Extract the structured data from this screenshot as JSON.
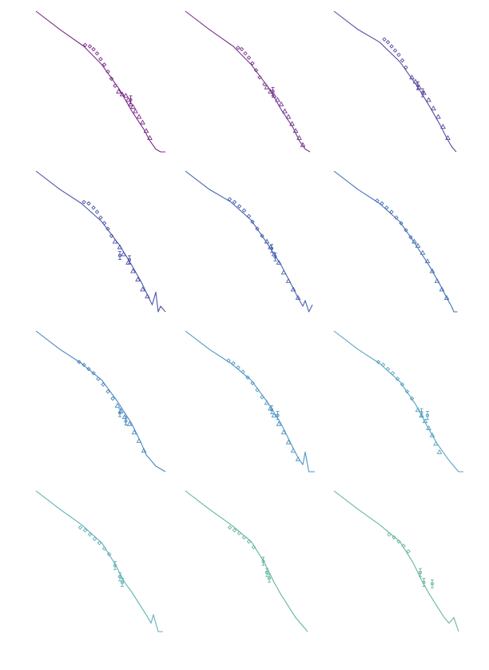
{
  "figure": {
    "rows": 4,
    "cols": 3,
    "axes_visible": false,
    "grid": false,
    "legend": "none"
  },
  "chart_data": [
    {
      "type": "line",
      "color": "#7b2a8a",
      "curve": {
        "x": [
          0,
          0.2,
          0.4,
          0.55,
          0.7,
          0.8,
          0.9,
          0.95,
          1.0,
          1.04,
          1.08
        ],
        "y": [
          0,
          0.13,
          0.25,
          0.38,
          0.56,
          0.71,
          0.84,
          0.92,
          0.98,
          1.0,
          1.0
        ]
      },
      "points": [
        {
          "marker": "diamond",
          "x": [
            0.41,
            0.45,
            0.48,
            0.51,
            0.54,
            0.57,
            0.6,
            0.63,
            0.66
          ],
          "y": [
            0.24,
            0.25,
            0.27,
            0.3,
            0.34,
            0.38,
            0.43,
            0.48,
            0.53
          ]
        },
        {
          "marker": "triangle",
          "x": [
            0.69,
            0.72,
            0.75,
            0.77,
            0.79,
            0.81,
            0.83,
            0.86,
            0.89,
            0.92,
            0.95
          ],
          "y": [
            0.57,
            0.59,
            0.6,
            0.63,
            0.66,
            0.68,
            0.71,
            0.75,
            0.79,
            0.85,
            0.9
          ]
        },
        {
          "marker": "errorbar",
          "x": [
            0.79
          ],
          "y": [
            0.63
          ]
        }
      ]
    },
    {
      "type": "line",
      "color": "#76368e",
      "curve": {
        "x": [
          0,
          0.2,
          0.4,
          0.55,
          0.7,
          0.8,
          0.9,
          0.95,
          1.0,
          1.04
        ],
        "y": [
          0,
          0.13,
          0.25,
          0.38,
          0.55,
          0.7,
          0.83,
          0.92,
          0.98,
          1.0
        ]
      },
      "points": [
        {
          "marker": "diamond",
          "x": [
            0.44,
            0.47,
            0.5,
            0.53,
            0.56,
            0.59,
            0.62,
            0.66
          ],
          "y": [
            0.26,
            0.27,
            0.3,
            0.33,
            0.37,
            0.42,
            0.47,
            0.52
          ]
        },
        {
          "marker": "triangle",
          "x": [
            0.68,
            0.71,
            0.74,
            0.77,
            0.8,
            0.83,
            0.86,
            0.89,
            0.92,
            0.95,
            0.98
          ],
          "y": [
            0.54,
            0.57,
            0.6,
            0.63,
            0.66,
            0.71,
            0.75,
            0.8,
            0.85,
            0.9,
            0.95
          ]
        },
        {
          "marker": "errorbar",
          "x": [
            0.73
          ],
          "y": [
            0.57
          ]
        }
      ]
    },
    {
      "type": "line",
      "color": "#5e4aa0",
      "curve": {
        "x": [
          0,
          0.2,
          0.38,
          0.55,
          0.7,
          0.8,
          0.88,
          0.94,
          0.98,
          1.0,
          1.02
        ],
        "y": [
          0,
          0.13,
          0.22,
          0.36,
          0.54,
          0.68,
          0.8,
          0.9,
          0.96,
          0.98,
          1.0
        ]
      },
      "points": [
        {
          "marker": "diamond",
          "x": [
            0.42,
            0.45,
            0.48,
            0.51,
            0.54,
            0.57,
            0.6
          ],
          "y": [
            0.2,
            0.22,
            0.25,
            0.28,
            0.31,
            0.35,
            0.4
          ]
        },
        {
          "marker": "triangle",
          "x": [
            0.65,
            0.68,
            0.71,
            0.75,
            0.79,
            0.83,
            0.87,
            0.91,
            0.95
          ],
          "y": [
            0.47,
            0.5,
            0.54,
            0.58,
            0.63,
            0.69,
            0.75,
            0.82,
            0.9
          ]
        },
        {
          "marker": "errorbar",
          "x": [
            0.7,
            0.74
          ],
          "y": [
            0.53,
            0.58
          ]
        }
      ]
    },
    {
      "type": "line",
      "color": "#4a55a8",
      "curve": {
        "x": [
          0,
          0.2,
          0.38,
          0.55,
          0.7,
          0.8,
          0.88,
          0.93,
          0.97,
          1.0,
          1.02,
          1.04,
          1.08
        ],
        "y": [
          0,
          0.13,
          0.23,
          0.36,
          0.53,
          0.67,
          0.79,
          0.88,
          0.95,
          0.86,
          1.0,
          0.96,
          1.0
        ]
      },
      "points": [
        {
          "marker": "diamond",
          "x": [
            0.4,
            0.44,
            0.48,
            0.51,
            0.54,
            0.57,
            0.6,
            0.63
          ],
          "y": [
            0.22,
            0.23,
            0.26,
            0.29,
            0.33,
            0.37,
            0.41,
            0.46
          ]
        },
        {
          "marker": "triangle",
          "x": [
            0.66,
            0.7,
            0.73,
            0.77,
            0.81,
            0.85,
            0.89,
            0.93
          ],
          "y": [
            0.5,
            0.54,
            0.59,
            0.65,
            0.71,
            0.77,
            0.84,
            0.89
          ]
        },
        {
          "marker": "errorbar",
          "x": [
            0.7,
            0.78
          ],
          "y": [
            0.6,
            0.63
          ]
        }
      ]
    },
    {
      "type": "line",
      "color": "#4762ae",
      "curve": {
        "x": [
          0,
          0.2,
          0.38,
          0.55,
          0.68,
          0.8,
          0.88,
          0.94,
          0.98,
          1.0,
          1.03,
          1.06
        ],
        "y": [
          0,
          0.13,
          0.22,
          0.35,
          0.51,
          0.67,
          0.8,
          0.9,
          0.96,
          0.92,
          1.0,
          0.95
        ]
      },
      "points": [
        {
          "marker": "diamond",
          "x": [
            0.37,
            0.41,
            0.45,
            0.49,
            0.53,
            0.56,
            0.6,
            0.64
          ],
          "y": [
            0.2,
            0.22,
            0.25,
            0.28,
            0.32,
            0.36,
            0.41,
            0.46
          ]
        },
        {
          "marker": "triangle",
          "x": [
            0.68,
            0.71,
            0.74,
            0.78,
            0.82,
            0.86,
            0.9,
            0.94
          ],
          "y": [
            0.5,
            0.54,
            0.59,
            0.65,
            0.72,
            0.78,
            0.84,
            0.9
          ]
        },
        {
          "marker": "errorbar",
          "x": [
            0.72,
            0.75
          ],
          "y": [
            0.55,
            0.61
          ]
        }
      ]
    },
    {
      "type": "line",
      "color": "#4672b6",
      "curve": {
        "x": [
          0,
          0.2,
          0.38,
          0.55,
          0.68,
          0.8,
          0.88,
          0.94,
          0.98,
          1.0,
          1.03
        ],
        "y": [
          0,
          0.13,
          0.23,
          0.36,
          0.52,
          0.68,
          0.8,
          0.9,
          0.96,
          1.0,
          1.0
        ]
      },
      "points": [
        {
          "marker": "diamond",
          "x": [
            0.36,
            0.4,
            0.44,
            0.48,
            0.52,
            0.56,
            0.6,
            0.64
          ],
          "y": [
            0.21,
            0.23,
            0.26,
            0.29,
            0.33,
            0.37,
            0.42,
            0.47
          ]
        },
        {
          "marker": "triangle",
          "x": [
            0.67,
            0.7,
            0.74,
            0.78,
            0.82,
            0.86,
            0.9,
            0.94
          ],
          "y": [
            0.5,
            0.53,
            0.58,
            0.64,
            0.71,
            0.78,
            0.84,
            0.9
          ]
        }
      ]
    },
    {
      "type": "line",
      "color": "#4a87bf",
      "curve": {
        "x": [
          0,
          0.2,
          0.38,
          0.55,
          0.68,
          0.8,
          0.88,
          0.92,
          0.96,
          1.0,
          1.04,
          1.08
        ],
        "y": [
          0,
          0.13,
          0.23,
          0.35,
          0.5,
          0.66,
          0.8,
          0.88,
          0.92,
          0.96,
          0.98,
          1.0
        ]
      },
      "points": [
        {
          "marker": "diamond",
          "x": [
            0.36,
            0.4,
            0.44,
            0.48,
            0.52,
            0.56,
            0.6,
            0.64
          ],
          "y": [
            0.22,
            0.24,
            0.27,
            0.3,
            0.34,
            0.38,
            0.43,
            0.48
          ]
        },
        {
          "marker": "triangle",
          "x": [
            0.68,
            0.71,
            0.74,
            0.78,
            0.82,
            0.86,
            0.9
          ],
          "y": [
            0.53,
            0.57,
            0.61,
            0.66,
            0.72,
            0.78,
            0.85
          ]
        },
        {
          "marker": "errorbar",
          "x": [
            0.7,
            0.75
          ],
          "y": [
            0.58,
            0.64
          ]
        }
      ]
    },
    {
      "type": "line",
      "color": "#4f96c4",
      "curve": {
        "x": [
          0,
          0.2,
          0.38,
          0.55,
          0.68,
          0.8,
          0.88,
          0.94,
          0.98,
          1.0,
          1.03,
          1.08
        ],
        "y": [
          0,
          0.13,
          0.23,
          0.35,
          0.5,
          0.66,
          0.8,
          0.9,
          0.95,
          0.86,
          1.0,
          1.0
        ]
      },
      "points": [
        {
          "marker": "diamond",
          "x": [
            0.36,
            0.4,
            0.44,
            0.48,
            0.52,
            0.56,
            0.6,
            0.64
          ],
          "y": [
            0.21,
            0.23,
            0.26,
            0.29,
            0.33,
            0.37,
            0.42,
            0.47
          ]
        },
        {
          "marker": "triangle",
          "x": [
            0.68,
            0.71,
            0.74,
            0.78,
            0.82,
            0.86,
            0.9,
            0.94
          ],
          "y": [
            0.51,
            0.55,
            0.6,
            0.66,
            0.72,
            0.79,
            0.85,
            0.91
          ]
        },
        {
          "marker": "errorbar",
          "x": [
            0.72,
            0.77
          ],
          "y": [
            0.56,
            0.6
          ]
        }
      ]
    },
    {
      "type": "line",
      "color": "#5aa3c2",
      "curve": {
        "x": [
          0,
          0.2,
          0.38,
          0.55,
          0.68,
          0.78,
          0.86,
          0.91,
          0.96,
          1.0,
          1.04,
          1.08
        ],
        "y": [
          0,
          0.13,
          0.23,
          0.36,
          0.52,
          0.68,
          0.8,
          0.86,
          0.92,
          0.96,
          1.0,
          1.0
        ]
      },
      "points": [
        {
          "marker": "diamond",
          "x": [
            0.37,
            0.41,
            0.45,
            0.49,
            0.53,
            0.57,
            0.61,
            0.65
          ],
          "y": [
            0.22,
            0.24,
            0.27,
            0.3,
            0.34,
            0.38,
            0.43,
            0.48
          ]
        },
        {
          "marker": "triangle",
          "x": [
            0.7,
            0.73,
            0.76,
            0.79,
            0.82,
            0.85,
            0.88
          ],
          "y": [
            0.56,
            0.6,
            0.64,
            0.69,
            0.74,
            0.8,
            0.86
          ]
        },
        {
          "marker": "errorbar",
          "x": [
            0.73,
            0.78
          ],
          "y": [
            0.58,
            0.6
          ]
        }
      ]
    },
    {
      "type": "line",
      "color": "#5fb0b4",
      "curve": {
        "x": [
          0,
          0.2,
          0.38,
          0.55,
          0.66,
          0.74,
          0.8,
          0.86,
          0.92,
          0.96,
          0.98,
          1.02,
          1.06
        ],
        "y": [
          0,
          0.13,
          0.24,
          0.37,
          0.52,
          0.65,
          0.72,
          0.8,
          0.88,
          0.94,
          0.88,
          1.0,
          1.0
        ]
      },
      "points": [
        {
          "marker": "diamond",
          "x": [
            0.37,
            0.41,
            0.45,
            0.49,
            0.53,
            0.57,
            0.61
          ],
          "y": [
            0.26,
            0.28,
            0.31,
            0.34,
            0.37,
            0.41,
            0.45
          ]
        },
        {
          "marker": "errorbar",
          "x": [
            0.66,
            0.7,
            0.72
          ],
          "y": [
            0.53,
            0.61,
            0.65
          ]
        }
      ]
    },
    {
      "type": "line",
      "color": "#63b4a5",
      "curve": {
        "x": [
          0,
          0.2,
          0.38,
          0.55,
          0.66,
          0.74,
          0.8,
          0.86,
          0.92,
          0.98,
          1.02
        ],
        "y": [
          0,
          0.13,
          0.24,
          0.36,
          0.51,
          0.65,
          0.74,
          0.82,
          0.9,
          0.96,
          1.0
        ]
      },
      "points": [
        {
          "marker": "diamond",
          "x": [
            0.37,
            0.41,
            0.45,
            0.49,
            0.53,
            0.57
          ],
          "y": [
            0.26,
            0.28,
            0.3,
            0.33,
            0.36,
            0.4
          ]
        },
        {
          "marker": "errorbar",
          "x": [
            0.65,
            0.68,
            0.7
          ],
          "y": [
            0.5,
            0.58,
            0.62
          ]
        }
      ]
    },
    {
      "type": "line",
      "color": "#68b89a",
      "curve": {
        "x": [
          0,
          0.2,
          0.38,
          0.55,
          0.66,
          0.74,
          0.8,
          0.86,
          0.92,
          0.96,
          1.0,
          1.04
        ],
        "y": [
          0,
          0.13,
          0.24,
          0.36,
          0.51,
          0.65,
          0.74,
          0.82,
          0.9,
          0.94,
          0.9,
          1.0
        ]
      },
      "points": [
        {
          "marker": "diamond",
          "x": [
            0.46,
            0.5,
            0.54,
            0.58,
            0.62
          ],
          "y": [
            0.31,
            0.33,
            0.36,
            0.39,
            0.43
          ]
        },
        {
          "marker": "errorbar",
          "x": [
            0.72,
            0.75,
            0.82
          ],
          "y": [
            0.58,
            0.65,
            0.66
          ]
        }
      ]
    }
  ]
}
